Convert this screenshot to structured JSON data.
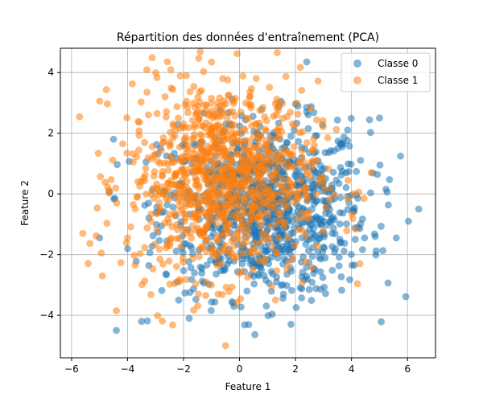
{
  "chart_data": {
    "type": "scatter",
    "title": "Répartition des données d'entraînement (PCA)",
    "xlabel": "Feature 1",
    "ylabel": "Feature 2",
    "xlim": [
      -6.4,
      7.0
    ],
    "ylim": [
      -5.4,
      4.8
    ],
    "xticks": [
      -6,
      -4,
      -2,
      0,
      2,
      4,
      6
    ],
    "yticks": [
      -4,
      -2,
      0,
      2,
      4
    ],
    "xtick_labels": [
      "−6",
      "−4",
      "−2",
      "0",
      "2",
      "4",
      "6"
    ],
    "ytick_labels": [
      "−4",
      "−2",
      "0",
      "2",
      "4"
    ],
    "grid": true,
    "legend_position": "top-right",
    "series": [
      {
        "name": "Classe 0",
        "color": "#1f77b4",
        "opacity": 0.55,
        "n_points": 1000,
        "center": [
          0.9,
          -0.5
        ],
        "spread": [
          1.85,
          1.45
        ],
        "notable_points": [
          [
            2.4,
            4.35
          ],
          [
            -4.4,
            -4.5
          ],
          [
            -3.5,
            -4.2
          ],
          [
            5.0,
            2.5
          ],
          [
            6.4,
            -0.5
          ],
          [
            5.6,
            -1.45
          ],
          [
            -5.0,
            -1.45
          ],
          [
            -1.8,
            -4.1
          ],
          [
            2.4,
            2.7
          ],
          [
            -4.5,
            1.8
          ]
        ]
      },
      {
        "name": "Classe 1",
        "color": "#ff7f0e",
        "opacity": 0.55,
        "n_points": 1000,
        "center": [
          -0.6,
          0.5
        ],
        "spread": [
          1.7,
          1.6
        ],
        "notable_points": [
          [
            -0.5,
            -5.0
          ],
          [
            -5.6,
            -1.3
          ],
          [
            -1.9,
            3.9
          ],
          [
            -4.4,
            -3.85
          ],
          [
            -4.9,
            -2.7
          ],
          [
            4.3,
            -2.3
          ],
          [
            -0.6,
            3.8
          ],
          [
            4.7,
            0.7
          ]
        ]
      }
    ]
  }
}
